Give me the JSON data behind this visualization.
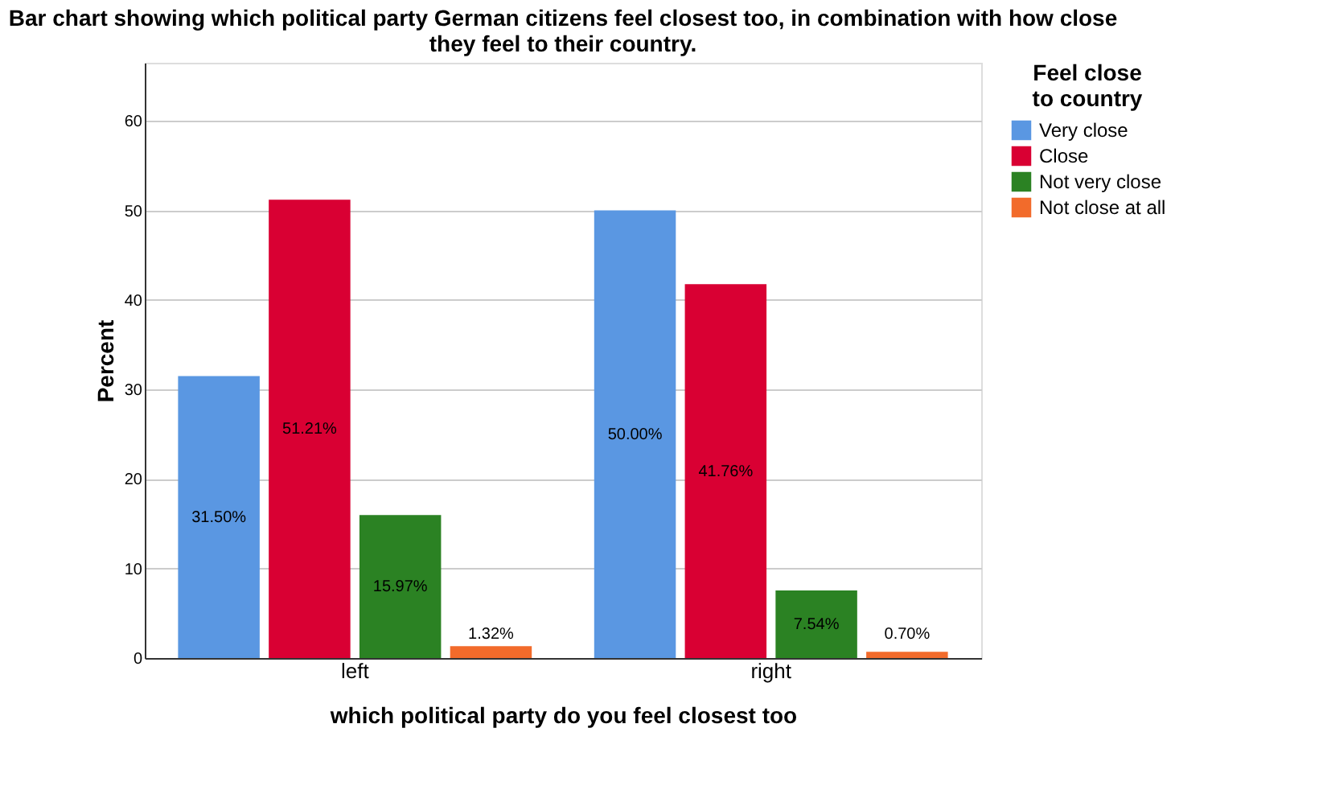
{
  "chart_data": {
    "type": "bar",
    "title": "Bar chart showing which political party German citizens feel closest too, in combination with how close they feel to their country.",
    "xlabel": "which political party do you feel closest too",
    "ylabel": "Percent",
    "legend_title": "Feel close to country",
    "categories": [
      "left",
      "right"
    ],
    "series": [
      {
        "name": "Very close",
        "color": "#5a97e2",
        "values": [
          31.5,
          50.0
        ],
        "value_labels": [
          "31.50%",
          "50.00%"
        ]
      },
      {
        "name": "Close",
        "color": "#d90033",
        "values": [
          51.21,
          41.76
        ],
        "value_labels": [
          "51.21%",
          "41.76%"
        ]
      },
      {
        "name": "Not very close",
        "color": "#2b8223",
        "values": [
          15.97,
          7.54
        ],
        "value_labels": [
          "15.97%",
          "7.54%"
        ]
      },
      {
        "name": "Not close at all",
        "color": "#f26b2b",
        "values": [
          1.32,
          0.7
        ],
        "value_labels": [
          "1.32%",
          "0.70%"
        ]
      }
    ],
    "ylim": [
      0,
      66.5
    ],
    "yticks": [
      0,
      10,
      20,
      30,
      40,
      50,
      60
    ],
    "grid": "y",
    "legend": "top right"
  }
}
